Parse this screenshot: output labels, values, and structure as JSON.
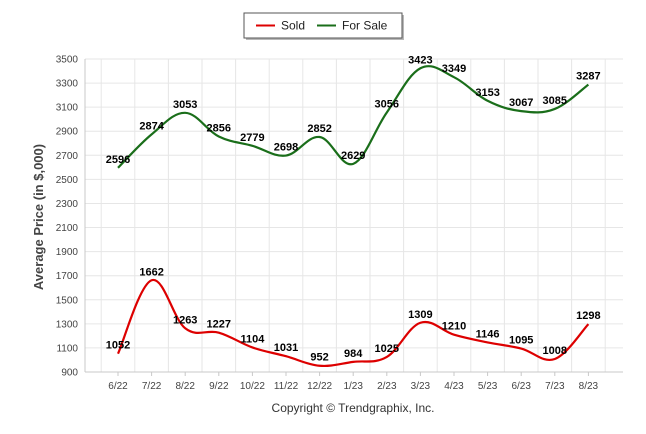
{
  "chart_data": {
    "type": "line",
    "categories": [
      "6/22",
      "7/22",
      "8/22",
      "9/22",
      "10/22",
      "11/22",
      "12/22",
      "1/23",
      "2/23",
      "3/23",
      "4/23",
      "5/23",
      "6/23",
      "7/23",
      "8/23"
    ],
    "series": [
      {
        "name": "Sold",
        "color": "#dd0000",
        "values": [
          1052,
          1662,
          1263,
          1227,
          1104,
          1031,
          952,
          984,
          1025,
          1309,
          1210,
          1146,
          1095,
          1008,
          1298
        ]
      },
      {
        "name": "For Sale",
        "color": "#1a6e1a",
        "values": [
          2596,
          2874,
          3053,
          2856,
          2779,
          2698,
          2852,
          2629,
          3056,
          3423,
          3349,
          3153,
          3067,
          3085,
          3287
        ]
      }
    ],
    "ylabel": "Average Price (in $,000)",
    "xlabel": "",
    "ylim": [
      900,
      3500
    ],
    "yticks": [
      "900",
      "1100",
      "1300",
      "1500",
      "1700",
      "1900",
      "2100",
      "2300",
      "2500",
      "2700",
      "2900",
      "3100",
      "3300",
      "3500"
    ],
    "grid": true,
    "legend_position": "top-center"
  },
  "footer": {
    "copyright": "Copyright © Trendgraphix, Inc."
  }
}
